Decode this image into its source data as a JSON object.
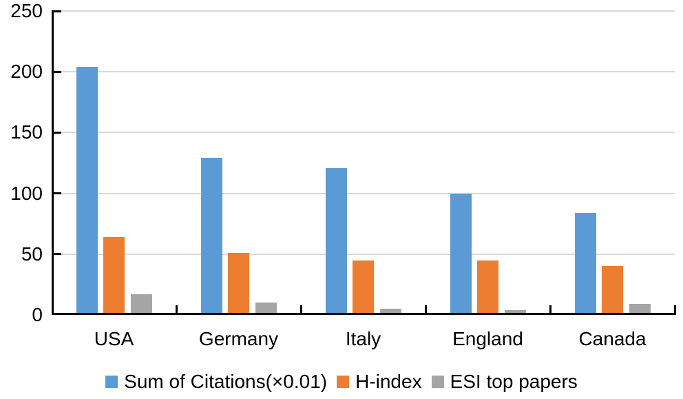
{
  "figure": {
    "background": "#ffffff",
    "text_color": "#000000"
  },
  "chart_data": {
    "type": "bar",
    "title": "",
    "xlabel": "",
    "ylabel": "",
    "categories": [
      "USA",
      "Germany",
      "Italy",
      "England",
      "Canada"
    ],
    "series": [
      {
        "name": "Sum of Citations(×0.01)",
        "color": "#5B9BD5",
        "values": [
          204,
          129,
          121,
          100,
          84
        ]
      },
      {
        "name": "H-index",
        "color": "#ED7D31",
        "values": [
          64,
          51,
          45,
          45,
          40
        ]
      },
      {
        "name": "ESI top papers",
        "color": "#A5A5A5",
        "values": [
          17,
          10,
          5,
          4,
          9
        ]
      }
    ],
    "ylim": [
      0,
      250
    ],
    "yticks": [
      0,
      50,
      100,
      150,
      200,
      250
    ],
    "grid": true,
    "gridline_color": "#D9D9D9",
    "axis_color": "#000000",
    "legend_position": "bottom"
  }
}
